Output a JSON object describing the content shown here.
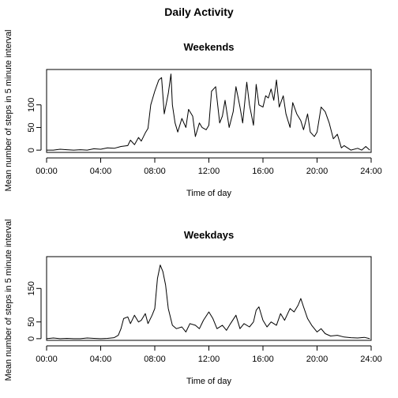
{
  "main_title": "Daily Activity",
  "ylabel": "Mean number of steps in 5 minute interval",
  "chart_data": [
    {
      "type": "line",
      "title": "Weekends",
      "xlabel": "Time of day",
      "ylabel": "Mean number of steps in 5 minute interval",
      "x_unit": "hours",
      "xlim": [
        0,
        24
      ],
      "ylim": [
        -5,
        178
      ],
      "x_ticks": [
        0,
        4,
        8,
        12,
        16,
        20,
        24
      ],
      "x_tick_labels": [
        "00:00",
        "04:00",
        "08:00",
        "12:00",
        "16:00",
        "20:00",
        "24:00"
      ],
      "y_ticks": [
        0,
        50,
        100
      ],
      "y_tick_labels": [
        "0",
        "50",
        "100"
      ],
      "series": [
        {
          "x": [
            0,
            0.5,
            1,
            1.5,
            2,
            2.5,
            3,
            3.5,
            4,
            4.5,
            5,
            5.5,
            6,
            6.2,
            6.5,
            6.8,
            7,
            7.3,
            7.5,
            7.7,
            8,
            8.3,
            8.5,
            8.7,
            9,
            9.2,
            9.3,
            9.5,
            9.7,
            10,
            10.3,
            10.5,
            10.8,
            11,
            11.3,
            11.5,
            11.8,
            12,
            12.2,
            12.5,
            12.8,
            13,
            13.2,
            13.5,
            13.8,
            14,
            14.3,
            14.5,
            14.8,
            15,
            15.3,
            15.5,
            15.7,
            16,
            16.2,
            16.4,
            16.6,
            16.8,
            17,
            17.2,
            17.5,
            17.7,
            18,
            18.2,
            18.5,
            18.8,
            19,
            19.3,
            19.5,
            19.8,
            20,
            20.3,
            20.6,
            20.9,
            21.2,
            21.5,
            21.8,
            22,
            22.5,
            23,
            23.3,
            23.6,
            23.9
          ],
          "y": [
            0,
            0,
            2,
            1,
            0,
            1,
            0,
            3,
            2,
            5,
            4,
            8,
            10,
            22,
            12,
            28,
            20,
            38,
            48,
            100,
            130,
            155,
            160,
            80,
            125,
            168,
            100,
            60,
            40,
            70,
            50,
            90,
            75,
            30,
            60,
            50,
            45,
            55,
            130,
            140,
            60,
            75,
            110,
            50,
            85,
            140,
            95,
            60,
            150,
            100,
            55,
            145,
            100,
            95,
            120,
            115,
            135,
            110,
            155,
            95,
            120,
            80,
            50,
            105,
            80,
            65,
            45,
            80,
            40,
            30,
            40,
            95,
            85,
            60,
            25,
            35,
            5,
            10,
            0,
            4,
            0,
            8,
            0
          ]
        }
      ]
    },
    {
      "type": "line",
      "title": "Weekdays",
      "xlabel": "Time of day",
      "ylabel": "Mean number of steps in 5 minute interval",
      "x_unit": "hours",
      "xlim": [
        0,
        24
      ],
      "ylim": [
        -5,
        245
      ],
      "x_ticks": [
        0,
        4,
        8,
        12,
        16,
        20,
        24
      ],
      "x_tick_labels": [
        "00:00",
        "04:00",
        "08:00",
        "12:00",
        "16:00",
        "20:00",
        "24:00"
      ],
      "y_ticks": [
        0,
        50,
        150
      ],
      "y_tick_labels": [
        "0",
        "50",
        "150"
      ],
      "series": [
        {
          "x": [
            0,
            0.5,
            1,
            1.5,
            2,
            2.5,
            3,
            3.5,
            4,
            4.5,
            5,
            5.3,
            5.5,
            5.7,
            6,
            6.2,
            6.5,
            6.8,
            7,
            7.3,
            7.5,
            7.8,
            8,
            8.2,
            8.4,
            8.6,
            8.8,
            9,
            9.3,
            9.6,
            10,
            10.3,
            10.6,
            11,
            11.3,
            11.6,
            12,
            12.3,
            12.6,
            13,
            13.3,
            13.6,
            14,
            14.3,
            14.6,
            15,
            15.3,
            15.5,
            15.7,
            16,
            16.3,
            16.6,
            17,
            17.3,
            17.6,
            18,
            18.3,
            18.6,
            18.8,
            19,
            19.3,
            19.6,
            20,
            20.3,
            20.6,
            21,
            21.5,
            22,
            22.5,
            23,
            23.5,
            23.9
          ],
          "y": [
            0,
            2,
            0,
            1,
            0,
            0,
            2,
            1,
            0,
            1,
            3,
            10,
            30,
            60,
            65,
            45,
            70,
            50,
            55,
            75,
            45,
            70,
            90,
            180,
            220,
            200,
            160,
            90,
            40,
            30,
            35,
            20,
            45,
            40,
            30,
            55,
            80,
            60,
            30,
            40,
            25,
            45,
            70,
            30,
            45,
            35,
            50,
            85,
            95,
            55,
            35,
            50,
            40,
            75,
            55,
            90,
            80,
            100,
            120,
            95,
            60,
            40,
            20,
            30,
            15,
            8,
            10,
            5,
            3,
            2,
            4,
            0
          ]
        }
      ]
    }
  ]
}
